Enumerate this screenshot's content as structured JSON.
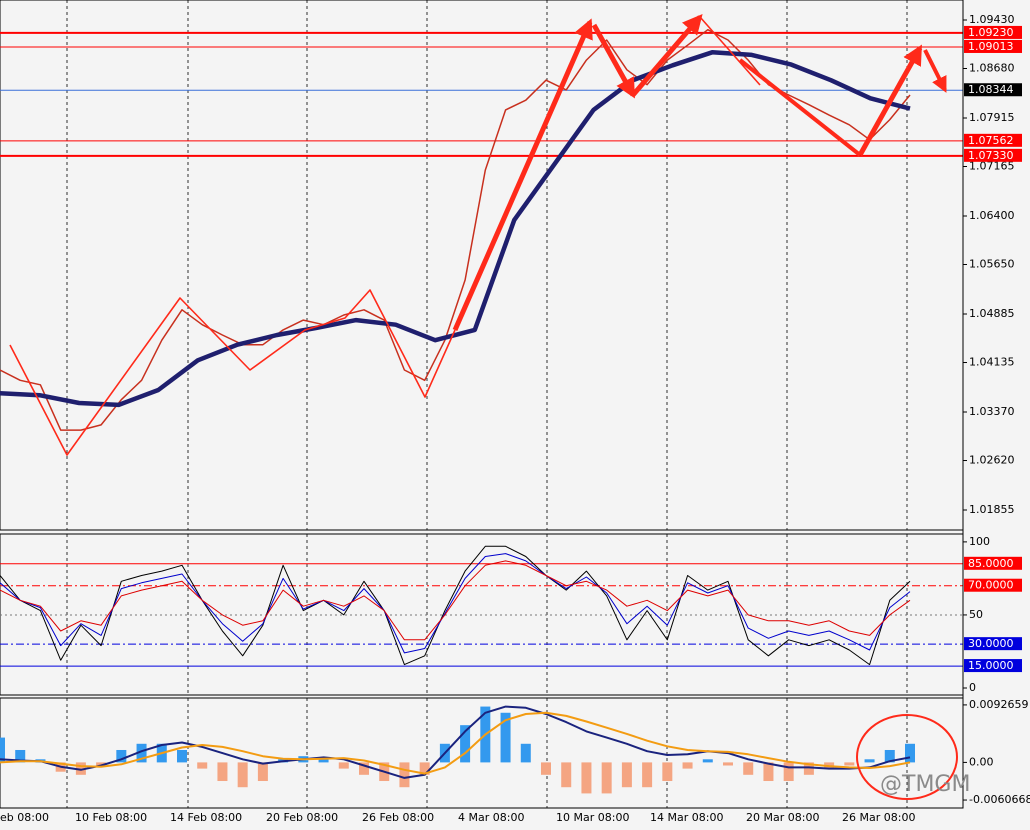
{
  "chart_data": [
    {
      "type": "line",
      "ylim": [
        1.01546,
        1.09739
      ],
      "yticks": [
        {
          "value": 1.0943,
          "label": "1.09430"
        },
        {
          "value": 1.0868,
          "label": "1.08680"
        },
        1.07915,
        1.07165,
        {
          "value": 1.064,
          "label": "1.06400"
        },
        {
          "value": 1.0565,
          "label": "1.05650"
        },
        1.04885,
        1.04135,
        {
          "value": 1.0337,
          "label": "1.03370"
        },
        {
          "value": 1.0262,
          "label": "1.02620"
        },
        1.01855
      ],
      "levels": [
        {
          "value": 1.0923,
          "label": "1.09230",
          "color": "#ff0000",
          "width": 2
        },
        {
          "value": 1.09013,
          "label": "1.09013",
          "color": "#ff0000",
          "width": 1
        },
        {
          "value": 1.08344,
          "label": "1.08344",
          "color": "#000000",
          "line_color": "#3a6fd8",
          "width": 1
        },
        {
          "value": 1.07562,
          "label": "1.07562",
          "color": "#ff0000",
          "width": 1
        },
        {
          "value": 1.0733,
          "label": "1.07330",
          "color": "#ff0000",
          "width": 2
        }
      ],
      "series": [
        {
          "color": "#c8301e",
          "width": 1.5,
          "values": [
            1.0402,
            1.0386,
            1.0379,
            1.0309,
            1.0309,
            1.0317,
            1.0356,
            1.0386,
            1.0448,
            1.0495,
            1.0472,
            1.0456,
            1.0441,
            1.0441,
            1.0464,
            1.0479,
            1.0472,
            1.0487,
            1.0495,
            1.0479,
            1.0402,
            1.0386,
            1.0448,
            1.0541,
            1.0711,
            1.0804,
            1.0819,
            1.085,
            1.0835,
            1.0881,
            1.0912,
            1.0866,
            1.0843,
            1.0881,
            1.0904,
            1.0928,
            1.0912,
            1.0881,
            1.0843,
            1.0827,
            1.0812,
            1.0796,
            1.0781,
            1.0758,
            1.0789,
            1.0827
          ]
        },
        {
          "color": "#1f1f6e",
          "width": 4.5,
          "values": [
            1.0366,
            1.0363,
            1.0351,
            1.0348,
            1.0371,
            1.0417,
            1.0441,
            1.0456,
            1.0467,
            1.0479,
            1.0472,
            1.0448,
            1.0464,
            1.0634,
            1.0719,
            1.0804,
            1.085,
            1.0873,
            1.0893,
            1.0889,
            1.0874,
            1.085,
            1.0822,
            1.0806
          ]
        }
      ]
    },
    {
      "type": "line",
      "ylim": [
        -4.8,
        105.4
      ],
      "yticks": [
        100,
        50,
        0
      ],
      "levels": [
        {
          "value": 85,
          "label": "85.0000",
          "color": "#ff0000",
          "dash": "none"
        },
        {
          "value": 70,
          "label": "70.0000",
          "color": "#ff0000",
          "dash": "8 3 2 3"
        },
        {
          "value": 30,
          "label": "30.0000",
          "color": "#0000dd",
          "dash": "8 3 2 3"
        },
        {
          "value": 15,
          "label": "15.0000",
          "color": "#0000dd",
          "dash": "none"
        }
      ],
      "series": [
        {
          "color": "#000000",
          "width": 1,
          "values": [
            77,
            60,
            53,
            19,
            43,
            29,
            73,
            77,
            80,
            84,
            60,
            39,
            22,
            43,
            84,
            53,
            60,
            50,
            73,
            53,
            16,
            22,
            53,
            80,
            97,
            97,
            90,
            77,
            67,
            80,
            63,
            33,
            53,
            33,
            77,
            67,
            73,
            33,
            22,
            33,
            29,
            33,
            26,
            16,
            60,
            73
          ]
        },
        {
          "color": "#0000cc",
          "width": 1,
          "values": [
            72,
            60,
            55,
            29,
            44,
            36,
            68,
            72,
            75,
            78,
            60,
            44,
            32,
            44,
            75,
            54,
            60,
            53,
            68,
            53,
            24,
            27,
            51,
            75,
            90,
            92,
            87,
            77,
            68,
            76,
            65,
            44,
            56,
            43,
            72,
            65,
            70,
            41,
            34,
            39,
            36,
            39,
            33,
            26,
            55,
            66
          ]
        },
        {
          "color": "#dd0000",
          "width": 1,
          "values": [
            67,
            60,
            56,
            39,
            46,
            43,
            63,
            67,
            70,
            73,
            60,
            50,
            43,
            46,
            67,
            56,
            60,
            56,
            63,
            53,
            33,
            33,
            50,
            70,
            84,
            87,
            84,
            77,
            70,
            73,
            67,
            56,
            60,
            53,
            67,
            63,
            67,
            50,
            46,
            46,
            43,
            46,
            39,
            36,
            50,
            60
          ]
        }
      ]
    },
    {
      "type": "macd",
      "ylim": [
        -0.00735,
        0.01038
      ],
      "yticks": [
        0.0092659,
        {
          "value": 0,
          "label": "0.00"
        },
        -0.0060668
      ],
      "histogram": {
        "color_up": "#3399ee",
        "color_down": "#f4a582",
        "values": [
          0.004,
          0.002,
          0.0005,
          -0.0015,
          -0.002,
          -0.0005,
          0.002,
          0.003,
          0.003,
          0.002,
          -0.001,
          -0.003,
          -0.004,
          -0.003,
          0.0005,
          0.001,
          0.0005,
          -0.001,
          -0.002,
          -0.003,
          -0.004,
          -0.002,
          0.003,
          0.006,
          0.009,
          0.008,
          0.003,
          -0.002,
          -0.004,
          -0.005,
          -0.005,
          -0.004,
          -0.004,
          -0.003,
          -0.001,
          0.0005,
          -0.0005,
          -0.002,
          -0.003,
          -0.003,
          -0.002,
          -0.001,
          -0.0005,
          0.0005,
          0.002,
          0.003
        ]
      },
      "series": [
        {
          "color": "#1a237e",
          "width": 2,
          "values": [
            0.0005,
            0.0003,
            0.0002,
            -0.0007,
            -0.0012,
            -0.0005,
            0.0005,
            0.0018,
            0.0028,
            0.0032,
            0.0025,
            0.0015,
            0.0005,
            -0.0002,
            0.0002,
            0.0005,
            0.0008,
            0.0005,
            -0.0005,
            -0.0015,
            -0.0025,
            -0.002,
            0.0015,
            0.005,
            0.008,
            0.009,
            0.0088,
            0.0078,
            0.0065,
            0.005,
            0.004,
            0.003,
            0.0018,
            0.0012,
            0.0013,
            0.0018,
            0.0015,
            0.0005,
            -0.0002,
            -0.0008,
            -0.0008,
            -0.001,
            -0.001,
            -0.0008,
            0.0002,
            0.0008
          ]
        },
        {
          "color": "#f39c12",
          "width": 2,
          "values": [
            0,
            0.0002,
            0.0002,
            -0.0002,
            -0.0006,
            -0.0007,
            -0.0003,
            0.0006,
            0.0015,
            0.0024,
            0.0028,
            0.0025,
            0.0018,
            0.001,
            0.0006,
            0.0005,
            0.0006,
            0.0007,
            0.0003,
            -0.0004,
            -0.0012,
            -0.0018,
            -0.0008,
            0.0015,
            0.0045,
            0.0068,
            0.0078,
            0.008,
            0.0075,
            0.0066,
            0.0056,
            0.0046,
            0.0035,
            0.0026,
            0.002,
            0.0018,
            0.0017,
            0.0013,
            0.0007,
            0.0001,
            -0.0003,
            -0.0006,
            -0.0008,
            -0.0009,
            -0.0006,
            0
          ]
        }
      ]
    }
  ],
  "time_labels": [
    "eb 08:00",
    "10 Feb 08:00",
    "14 Feb 08:00",
    "20 Feb 08:00",
    "26 Feb 08:00",
    "4 Mar 08:00",
    "10 Mar 08:00",
    "14 Mar 08:00",
    "20 Mar 08:00",
    "26 Mar 08:00"
  ],
  "watermark": "@TMGM"
}
